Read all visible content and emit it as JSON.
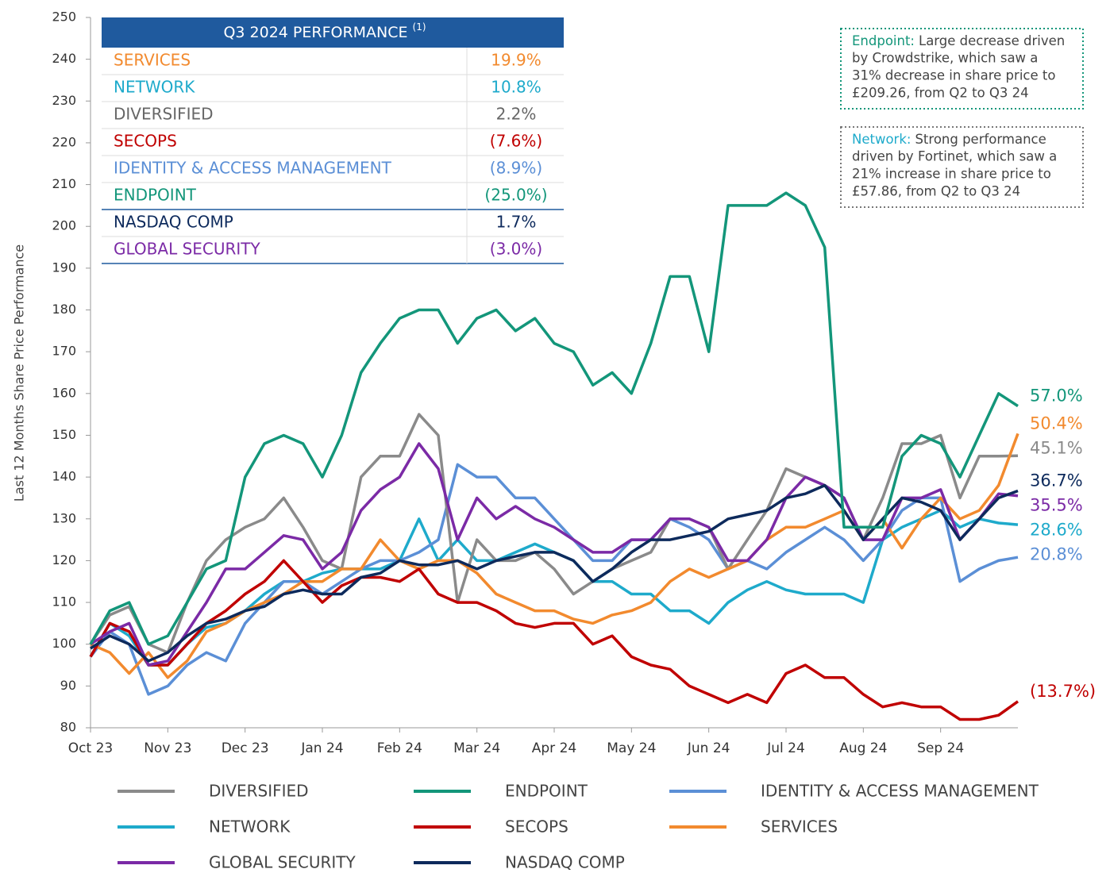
{
  "chart_data": {
    "type": "line",
    "y_label": "Last 12 Months Share Price Performance",
    "categories": [
      "Oct 23",
      null,
      null,
      null,
      "Nov 23",
      null,
      null,
      null,
      "Dec 23",
      null,
      null,
      null,
      "Jan 24",
      null,
      null,
      null,
      "Feb 24",
      null,
      null,
      null,
      "Mar 24",
      null,
      null,
      null,
      "Apr 24",
      null,
      null,
      null,
      "May 24",
      null,
      null,
      null,
      "Jun 24",
      null,
      null,
      null,
      "Jul 24",
      null,
      null,
      null,
      "Aug 24",
      null,
      null,
      null,
      "Sep 24",
      null,
      null,
      null,
      null
    ],
    "ylim": [
      80,
      250
    ],
    "yticks": [
      80,
      90,
      100,
      110,
      120,
      130,
      140,
      150,
      160,
      170,
      180,
      190,
      200,
      210,
      220,
      230,
      240,
      250
    ],
    "grid": false,
    "series": [
      {
        "name": "DIVERSIFIED",
        "color": "#8a8a8a",
        "end_label": "45.1%",
        "values": [
          100,
          107,
          109,
          100,
          98,
          110,
          120,
          125,
          128,
          130,
          135,
          128,
          120,
          118,
          140,
          145,
          145,
          155,
          150,
          110,
          125,
          120,
          120,
          122,
          118,
          112,
          115,
          118,
          120,
          122,
          130,
          130,
          128,
          118,
          125,
          132,
          142,
          140,
          138,
          135,
          125,
          135,
          148,
          148,
          150,
          135,
          145,
          145,
          145.1
        ]
      },
      {
        "name": "ENDPOINT",
        "color": "#13967a",
        "end_label": "57.0%",
        "values": [
          100,
          108,
          110,
          100,
          102,
          110,
          118,
          120,
          140,
          148,
          150,
          148,
          140,
          150,
          165,
          172,
          178,
          180,
          180,
          172,
          178,
          180,
          175,
          178,
          172,
          170,
          162,
          165,
          160,
          172,
          188,
          188,
          170,
          205,
          205,
          205,
          208,
          205,
          195,
          128,
          128,
          128,
          145,
          150,
          148,
          140,
          150,
          160,
          157
        ]
      },
      {
        "name": "IDENTITY & ACCESS MANAGEMENT",
        "color": "#5b8fd6",
        "end_label": "20.8%",
        "values": [
          97,
          103,
          100,
          88,
          90,
          95,
          98,
          96,
          105,
          110,
          115,
          115,
          112,
          115,
          118,
          120,
          120,
          122,
          125,
          143,
          140,
          140,
          135,
          135,
          130,
          125,
          120,
          120,
          125,
          125,
          130,
          128,
          125,
          118,
          120,
          118,
          122,
          125,
          128,
          125,
          120,
          125,
          132,
          135,
          135,
          115,
          118,
          120,
          120.8
        ]
      },
      {
        "name": "NETWORK",
        "color": "#1eaacb",
        "end_label": "28.6%",
        "values": [
          97,
          105,
          102,
          95,
          95,
          100,
          104,
          105,
          108,
          112,
          115,
          115,
          117,
          118,
          118,
          118,
          120,
          130,
          120,
          125,
          120,
          120,
          122,
          124,
          122,
          120,
          115,
          115,
          112,
          112,
          108,
          108,
          105,
          110,
          113,
          115,
          113,
          112,
          112,
          112,
          110,
          125,
          128,
          130,
          132,
          128,
          130,
          129,
          128.6
        ]
      },
      {
        "name": "SECOPS",
        "color": "#c00000",
        "end_label": "(13.7%)",
        "values": [
          97,
          105,
          103,
          95,
          95,
          100,
          105,
          108,
          112,
          115,
          120,
          115,
          110,
          114,
          116,
          116,
          115,
          118,
          112,
          110,
          110,
          108,
          105,
          104,
          105,
          105,
          100,
          102,
          97,
          95,
          94,
          90,
          88,
          86,
          88,
          86,
          93,
          95,
          92,
          92,
          88,
          85,
          86,
          85,
          85,
          82,
          82,
          83,
          86.3
        ]
      },
      {
        "name": "SERVICES",
        "color": "#f28a2e",
        "end_label": "50.4%",
        "values": [
          100,
          98,
          93,
          98,
          92,
          96,
          103,
          105,
          108,
          110,
          112,
          115,
          115,
          118,
          118,
          125,
          120,
          118,
          120,
          120,
          117,
          112,
          110,
          108,
          108,
          106,
          105,
          107,
          108,
          110,
          115,
          118,
          116,
          118,
          120,
          125,
          128,
          128,
          130,
          132,
          125,
          130,
          123,
          130,
          135,
          130,
          132,
          138,
          150.4
        ]
      },
      {
        "name": "GLOBAL SECURITY",
        "color": "#7b2aa6",
        "end_label": "35.5%",
        "values": [
          100,
          103,
          105,
          95,
          96,
          103,
          110,
          118,
          118,
          122,
          126,
          125,
          118,
          122,
          132,
          137,
          140,
          148,
          142,
          125,
          135,
          130,
          133,
          130,
          128,
          125,
          122,
          122,
          125,
          125,
          130,
          130,
          128,
          120,
          120,
          125,
          135,
          140,
          138,
          135,
          125,
          125,
          135,
          135,
          137,
          125,
          130,
          136,
          135.5
        ]
      },
      {
        "name": "NASDAQ COMP",
        "color": "#0d2a5c",
        "end_label": "36.7%",
        "values": [
          99,
          102,
          100,
          96,
          98,
          102,
          105,
          106,
          108,
          109,
          112,
          113,
          112,
          112,
          116,
          117,
          120,
          119,
          119,
          120,
          118,
          120,
          121,
          122,
          122,
          120,
          115,
          118,
          122,
          125,
          125,
          126,
          127,
          130,
          131,
          132,
          135,
          136,
          138,
          132,
          125,
          130,
          135,
          134,
          132,
          125,
          130,
          135,
          136.7
        ]
      }
    ],
    "table": {
      "title": "Q3 2024 PERFORMANCE",
      "footnote": "(1)",
      "header_color": "#1f5a9e",
      "rows": [
        {
          "name": "SERVICES",
          "value": "19.9%",
          "color": "#f28a2e"
        },
        {
          "name": "NETWORK",
          "value": "10.8%",
          "color": "#1eaacb"
        },
        {
          "name": "DIVERSIFIED",
          "value": "2.2%",
          "color": "#666666"
        },
        {
          "name": "SECOPS",
          "value": "(7.6%)",
          "color": "#c00000"
        },
        {
          "name": "IDENTITY & ACCESS MANAGEMENT",
          "value": "(8.9%)",
          "color": "#5b8fd6"
        },
        {
          "name": "ENDPOINT",
          "value": "(25.0%)",
          "color": "#13967a"
        },
        {
          "name": "NASDAQ COMP",
          "value": "1.7%",
          "color": "#0d2a5c"
        },
        {
          "name": "GLOBAL SECURITY",
          "value": "(3.0%)",
          "color": "#7b2aa6"
        }
      ]
    },
    "annotations": [
      {
        "title": "Endpoint:",
        "color": "#13967a",
        "border": "#13967a",
        "lines": [
          "Large decrease driven",
          "by Crowdstrike, which saw a",
          "31% decrease in share price to",
          "£209.26, from Q2 to Q3 24"
        ]
      },
      {
        "title": "Network:",
        "color": "#1eaacb",
        "border": "#777777",
        "lines": [
          "Strong performance",
          "driven by Fortinet, which saw a",
          "21% increase in share price to",
          "£57.86, from Q2 to Q3 24"
        ]
      }
    ]
  }
}
